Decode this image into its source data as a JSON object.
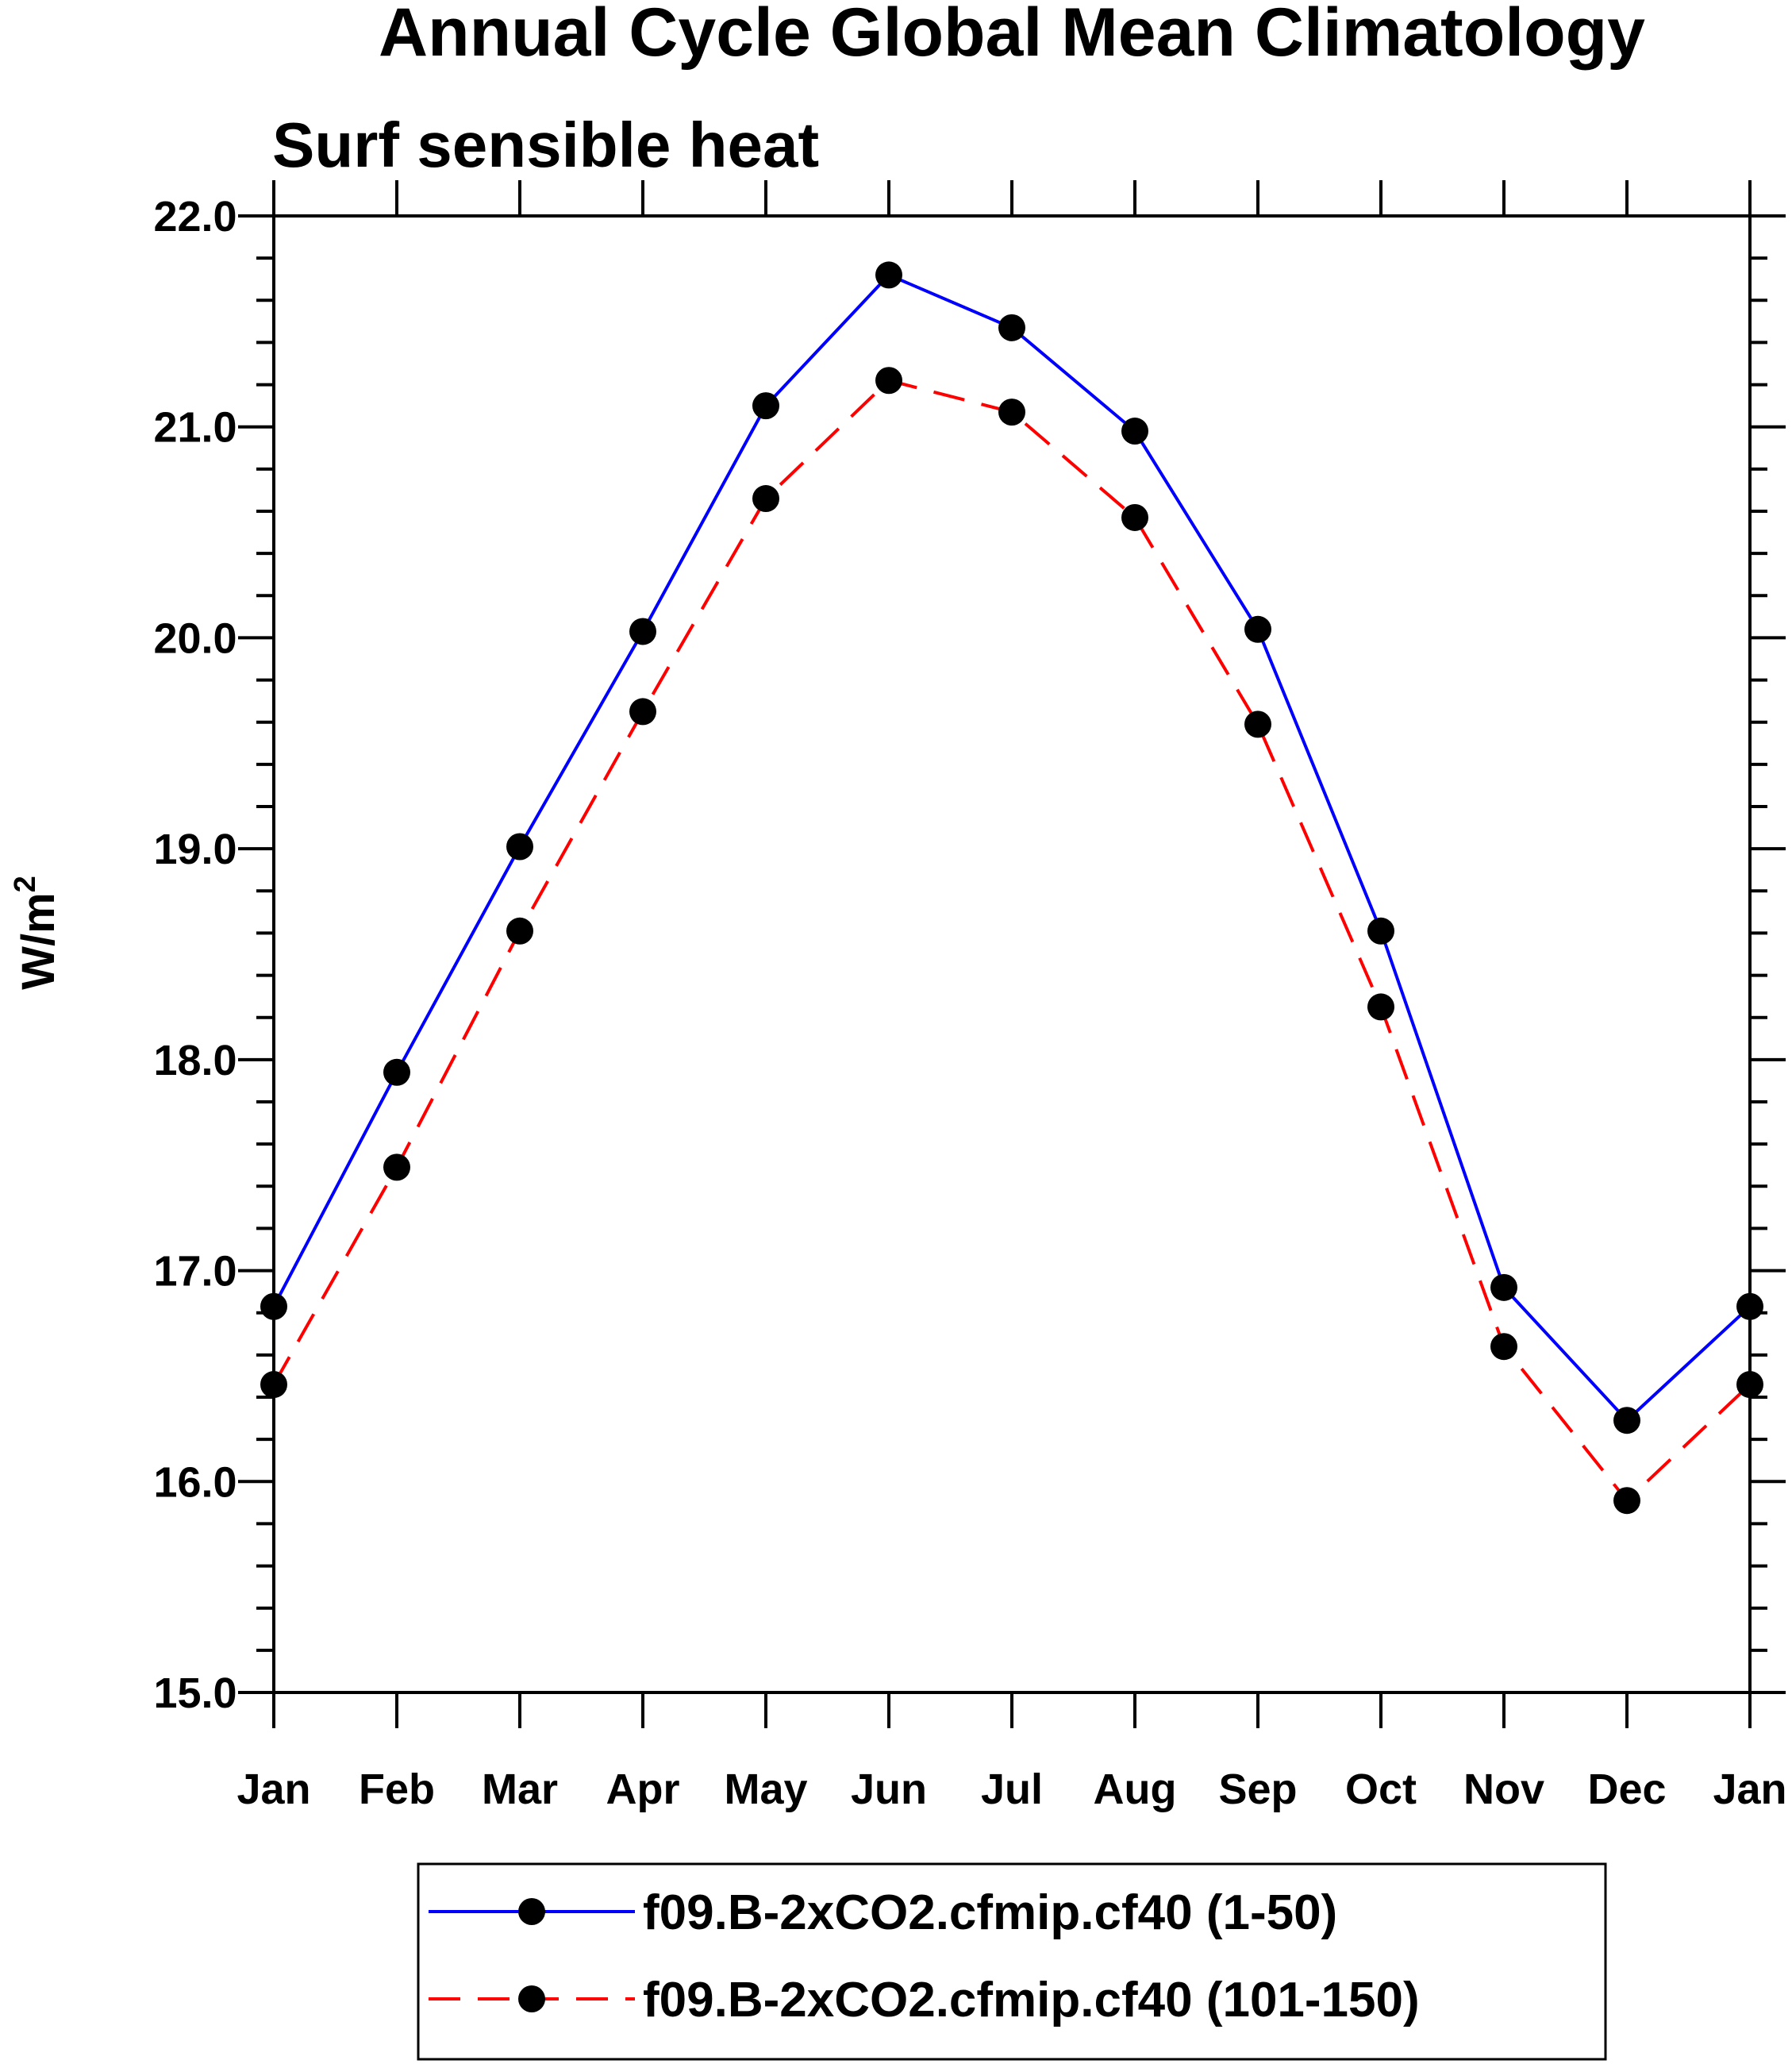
{
  "chart_data": {
    "type": "line",
    "title": "Annual Cycle Global Mean Climatology",
    "subtitle": "Surf sensible heat",
    "xlabel": "",
    "ylabel": "W/m",
    "ylabel_superscript": "2",
    "categories": [
      "Jan",
      "Feb",
      "Mar",
      "Apr",
      "May",
      "Jun",
      "Jul",
      "Aug",
      "Sep",
      "Oct",
      "Nov",
      "Dec",
      "Jan"
    ],
    "ylim": [
      15.0,
      22.0
    ],
    "yticks": [
      "15.0",
      "16.0",
      "17.0",
      "18.0",
      "19.0",
      "20.0",
      "21.0",
      "22.0"
    ],
    "series": [
      {
        "name": "f09.B-2xCO2.cfmip.cf40 (1-50)",
        "color": "#0000ff",
        "dash": "solid",
        "values": [
          16.83,
          17.94,
          19.01,
          20.03,
          21.1,
          21.72,
          21.47,
          20.98,
          20.04,
          18.61,
          16.92,
          16.29,
          16.83
        ]
      },
      {
        "name": "f09.B-2xCO2.cfmip.cf40 (101-150)",
        "color": "#ff0000",
        "dash": "dashed",
        "values": [
          16.46,
          17.49,
          18.61,
          19.65,
          20.66,
          21.22,
          21.07,
          20.57,
          19.59,
          18.25,
          16.64,
          15.91,
          16.46
        ]
      }
    ],
    "legend_position": "bottom-center",
    "grid": false
  }
}
